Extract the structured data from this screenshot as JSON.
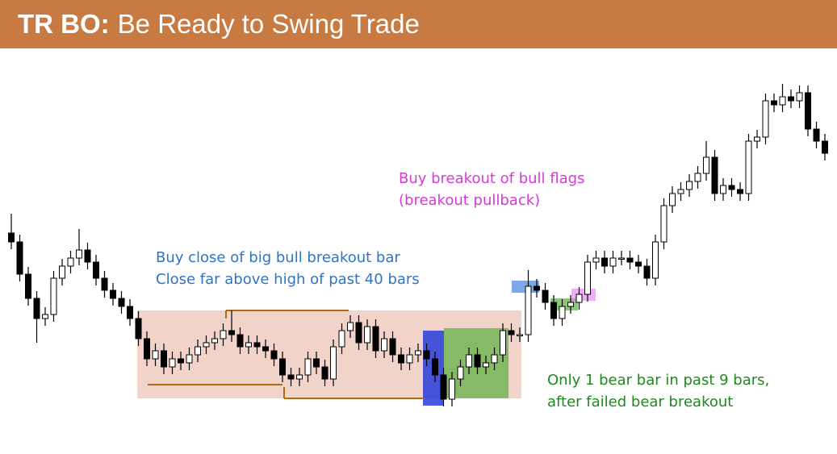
{
  "header": {
    "bold": "TR BO:",
    "title": "Be Ready to Swing Trade"
  },
  "chart_data": {
    "type": "candlestick",
    "ylim": [
      0,
      500
    ],
    "bull_color": "#ffffff",
    "bear_color": "#000000",
    "open": [
      270,
      259,
      219,
      189,
      164,
      169,
      214,
      229,
      239,
      249,
      234,
      214,
      199,
      189,
      179,
      164,
      139,
      114,
      124,
      104,
      114,
      109,
      119,
      129,
      134,
      139,
      149,
      144,
      129,
      134,
      129,
      124,
      114,
      94,
      89,
      94,
      114,
      104,
      89,
      129,
      149,
      159,
      134,
      154,
      124,
      139,
      119,
      109,
      119,
      124,
      114,
      94,
      64,
      89,
      104,
      119,
      104,
      109,
      119,
      149,
      144,
      144,
      204,
      199,
      184,
      164,
      179,
      184,
      194,
      234,
      239,
      229,
      239,
      239,
      234,
      229,
      214,
      259,
      304,
      319,
      324,
      334,
      344,
      364,
      319,
      329,
      324,
      319,
      384,
      389,
      434,
      429,
      439,
      434,
      444,
      399,
      384
    ],
    "high": [
      294,
      268,
      228,
      198,
      178,
      223,
      238,
      248,
      275,
      258,
      243,
      223,
      208,
      198,
      188,
      173,
      148,
      133,
      133,
      123,
      123,
      128,
      138,
      143,
      148,
      158,
      174,
      153,
      143,
      143,
      138,
      133,
      123,
      103,
      103,
      123,
      123,
      113,
      138,
      158,
      168,
      168,
      163,
      163,
      148,
      148,
      128,
      128,
      133,
      133,
      123,
      103,
      98,
      113,
      128,
      128,
      118,
      128,
      158,
      158,
      153,
      224,
      213,
      208,
      193,
      188,
      193,
      203,
      243,
      248,
      248,
      248,
      248,
      248,
      243,
      238,
      268,
      313,
      328,
      333,
      343,
      353,
      384,
      373,
      338,
      338,
      333,
      393,
      398,
      443,
      443,
      455,
      448,
      453,
      453,
      408,
      393
    ],
    "low": [
      250,
      210,
      180,
      134,
      155,
      160,
      205,
      220,
      230,
      225,
      205,
      190,
      180,
      170,
      155,
      130,
      105,
      105,
      95,
      95,
      100,
      100,
      110,
      120,
      125,
      130,
      135,
      120,
      120,
      120,
      115,
      105,
      85,
      80,
      80,
      85,
      95,
      80,
      80,
      120,
      140,
      125,
      125,
      115,
      115,
      110,
      100,
      100,
      110,
      105,
      85,
      55,
      55,
      80,
      95,
      95,
      95,
      100,
      110,
      135,
      135,
      135,
      190,
      175,
      155,
      155,
      170,
      175,
      185,
      225,
      220,
      220,
      230,
      225,
      220,
      205,
      205,
      250,
      295,
      310,
      315,
      325,
      335,
      310,
      310,
      315,
      310,
      310,
      375,
      380,
      420,
      420,
      425,
      425,
      390,
      375,
      360
    ],
    "close": [
      259,
      219,
      189,
      164,
      169,
      214,
      229,
      239,
      249,
      234,
      214,
      199,
      189,
      179,
      164,
      139,
      114,
      124,
      104,
      114,
      109,
      119,
      129,
      134,
      139,
      149,
      144,
      129,
      134,
      129,
      124,
      114,
      94,
      89,
      94,
      114,
      104,
      89,
      129,
      149,
      159,
      134,
      154,
      124,
      139,
      119,
      109,
      119,
      124,
      114,
      94,
      64,
      89,
      104,
      119,
      104,
      109,
      119,
      149,
      144,
      144,
      204,
      199,
      184,
      164,
      179,
      184,
      194,
      234,
      239,
      229,
      239,
      239,
      234,
      229,
      214,
      259,
      304,
      319,
      324,
      334,
      344,
      364,
      319,
      329,
      324,
      319,
      384,
      389,
      434,
      429,
      439,
      434,
      444,
      399,
      384,
      369
    ],
    "annotations": [
      {
        "lines": [
          "Buy close of big bull breakout bar",
          "Close far above high of past 40 bars"
        ],
        "color": "#2f73c6"
      },
      {
        "lines": [
          "Buy breakout of bull flags",
          "(breakout pullback)"
        ],
        "color": "#d63ad6"
      },
      {
        "lines": [
          "Only 1 bear bar in past 9 bars,",
          "after failed bear breakout"
        ],
        "color": "#1d8a1d"
      }
    ]
  }
}
